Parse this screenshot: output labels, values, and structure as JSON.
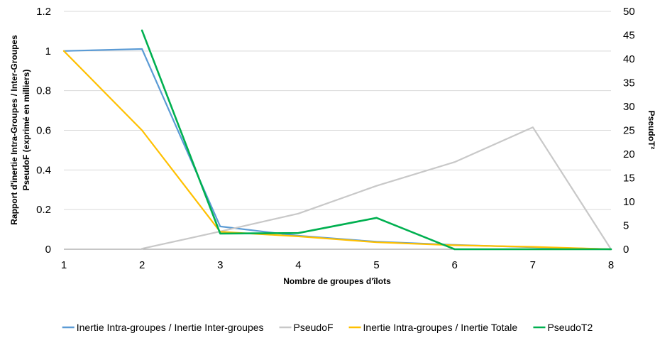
{
  "chart_data": {
    "type": "line",
    "x": [
      1,
      2,
      3,
      4,
      5,
      6,
      7,
      8
    ],
    "xlabel": "Nombre de groupes d'îlots",
    "ylabel_left_line1": "Rapport  d'inertie Intra-Groupes / Inter-Groupes",
    "ylabel_left_line2": "PseudoF (exprimé en milliers)",
    "ylabel_right": "PseudoT²",
    "xlim": [
      1,
      8
    ],
    "ylim_left": [
      0,
      1.2
    ],
    "ylim_right": [
      0,
      50
    ],
    "x_ticks": [
      "1",
      "2",
      "3",
      "4",
      "5",
      "6",
      "7",
      "8"
    ],
    "y_left_ticks": [
      "0",
      "0.2",
      "0.4",
      "0.6",
      "0.8",
      "1",
      "1.2"
    ],
    "y_right_ticks": [
      "0",
      "5",
      "10",
      "15",
      "20",
      "25",
      "30",
      "35",
      "40",
      "45",
      "50"
    ],
    "grid": true,
    "legend_position": "bottom",
    "series": [
      {
        "name": "Inertie Intra-groupes / Inertie Inter-groupes",
        "color": "#5B9BD5",
        "axis": "left",
        "x": [
          1,
          2,
          3,
          4,
          5,
          6,
          7,
          8
        ],
        "values": [
          1.0,
          1.01,
          0.115,
          0.068,
          0.038,
          0.022,
          0.01,
          0.0
        ]
      },
      {
        "name": "PseudoF",
        "color": "#C8C8C8",
        "axis": "left",
        "x": [
          2,
          3,
          4,
          5,
          6,
          7,
          8
        ],
        "values": [
          0.003,
          0.09,
          0.18,
          0.32,
          0.44,
          0.615,
          0.0
        ]
      },
      {
        "name": "Inertie Intra-groupes / Inertie Totale",
        "color": "#FFC000",
        "axis": "left",
        "x": [
          1,
          2,
          3,
          4,
          5,
          6,
          7,
          8
        ],
        "values": [
          1.0,
          0.6,
          0.088,
          0.065,
          0.035,
          0.02,
          0.012,
          0.0
        ]
      },
      {
        "name": "PseudoT2",
        "color": "#00B050",
        "axis": "right",
        "x": [
          2,
          3,
          4,
          5,
          6,
          7,
          8
        ],
        "values": [
          46,
          3.3,
          3.4,
          6.6,
          0,
          0,
          0
        ]
      }
    ]
  }
}
